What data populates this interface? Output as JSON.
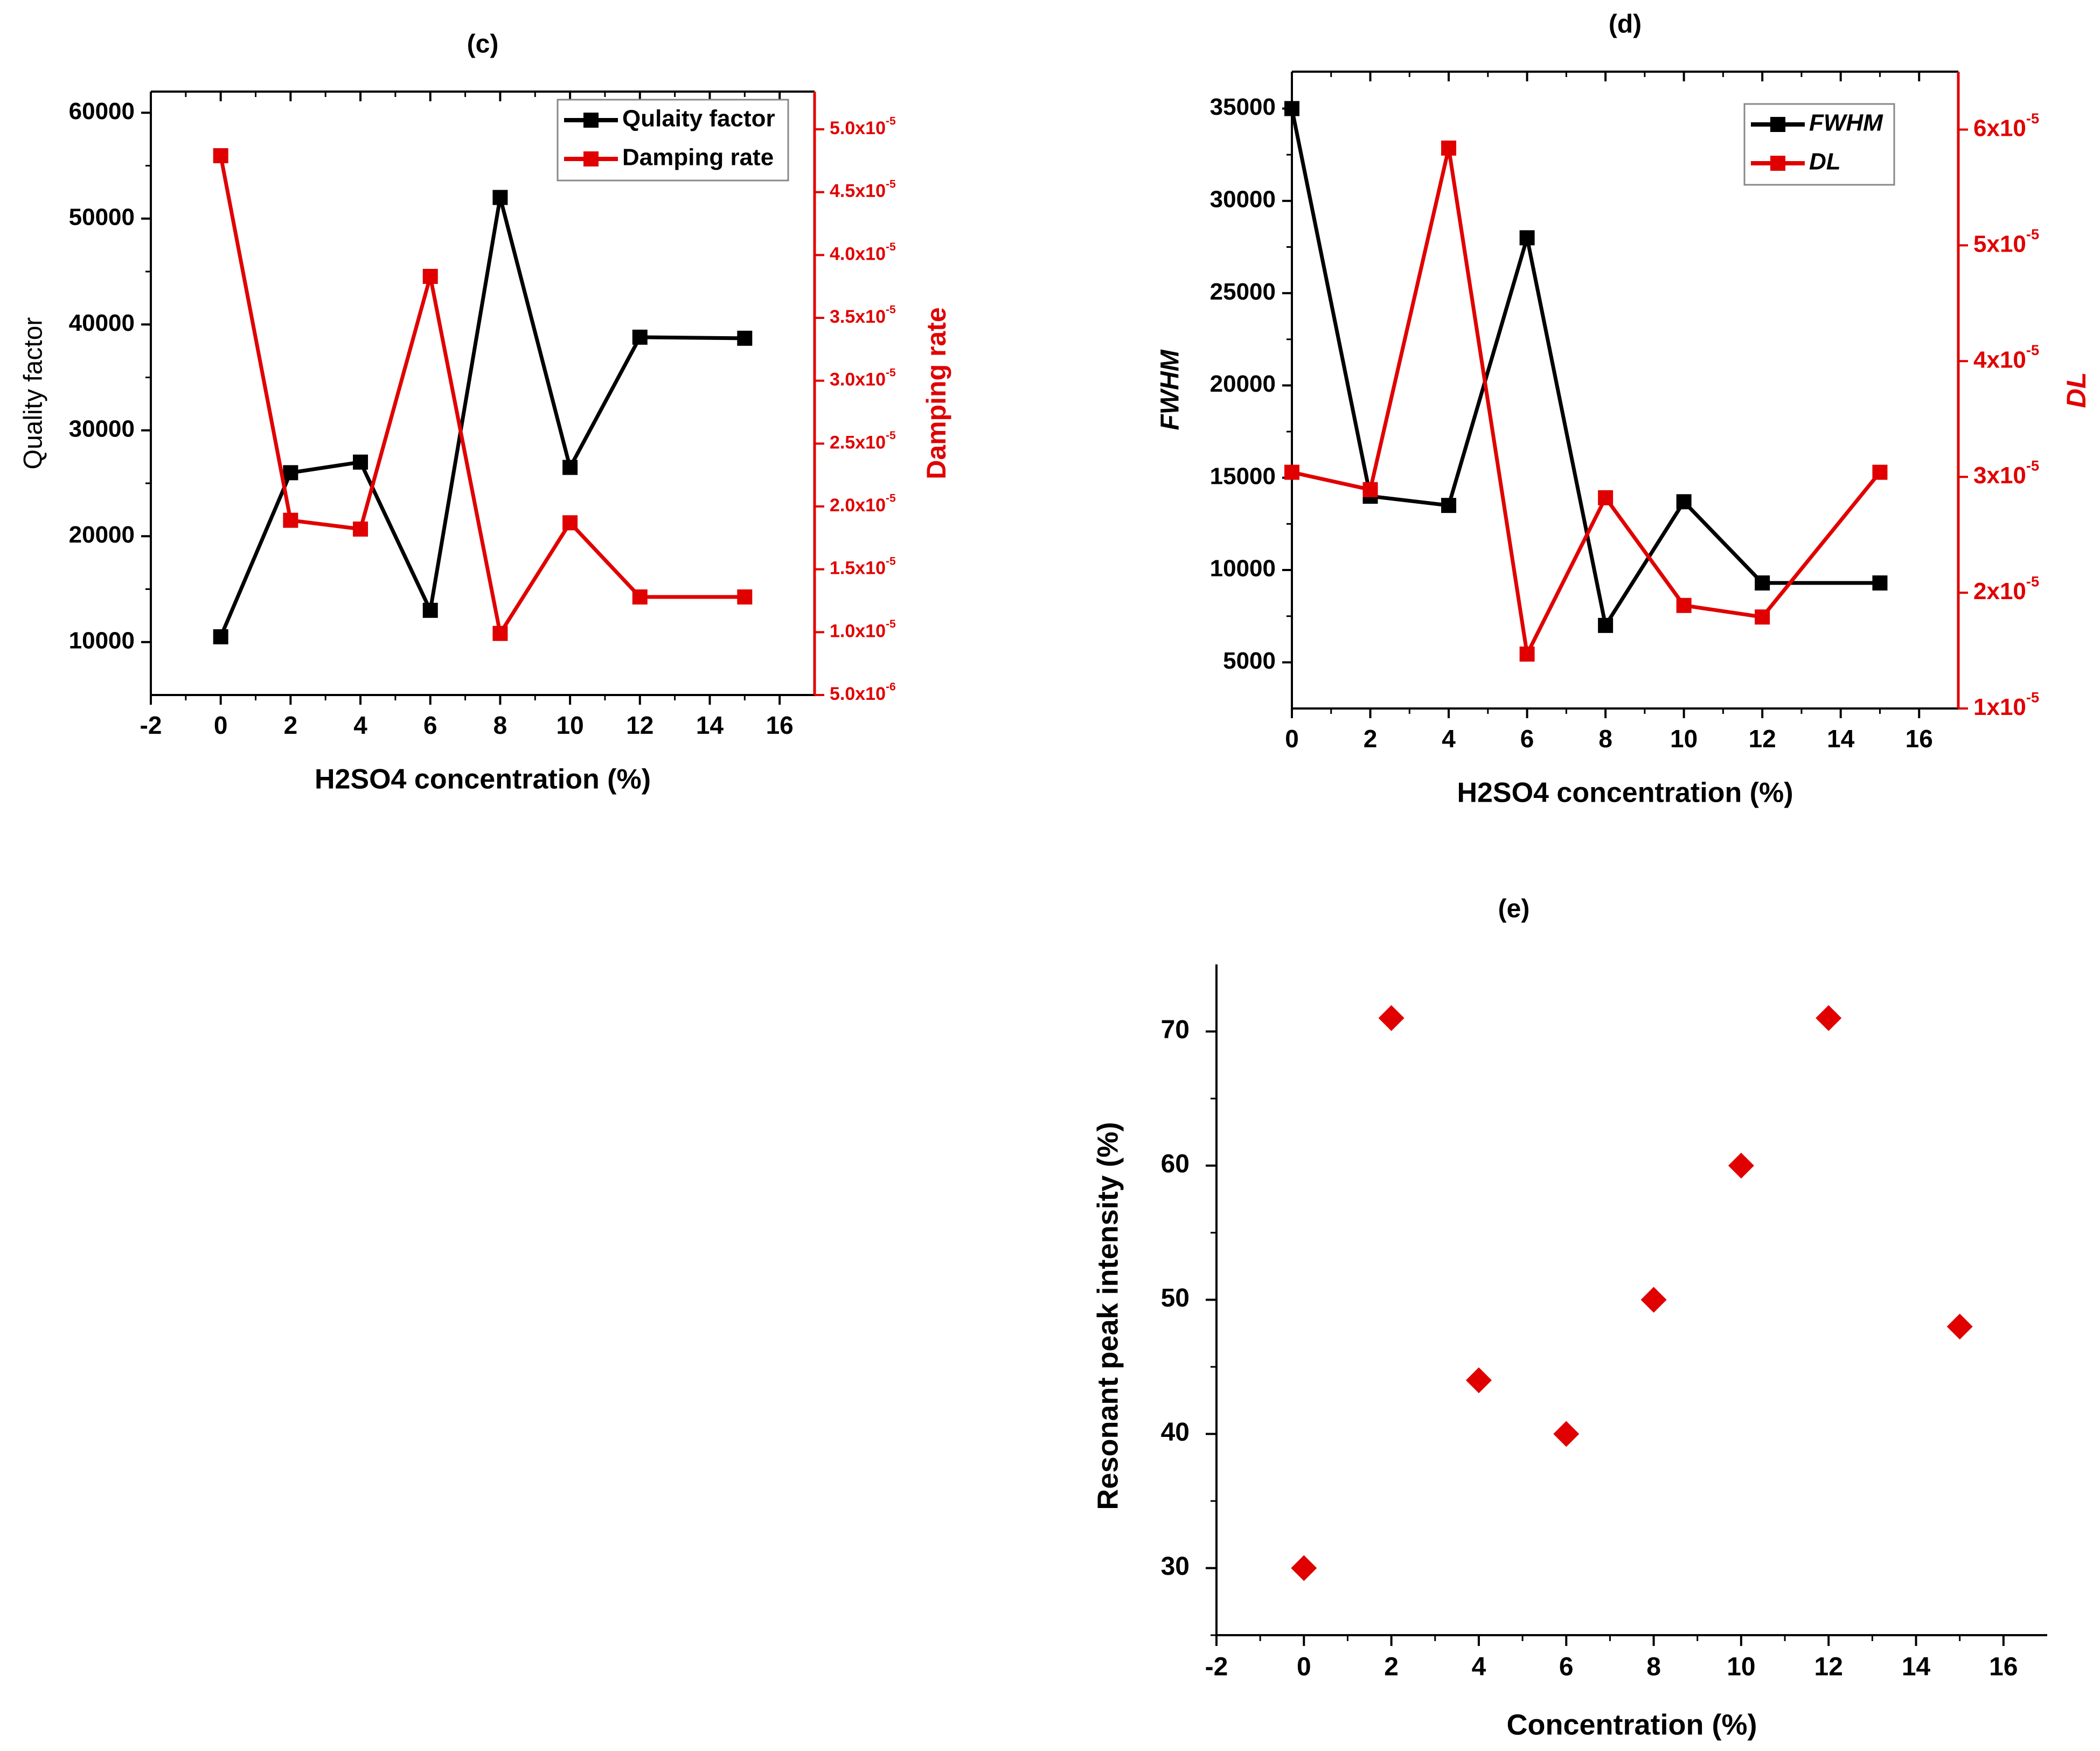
{
  "chart_data": [
    {
      "id": "c",
      "type": "line",
      "title": "(c)",
      "xlabel": "H2SO4 concentration (%)",
      "ylabel": "Quality factor",
      "y2label": "Damping rate",
      "xlim": [
        -2,
        17
      ],
      "ylim": [
        5000,
        62000
      ],
      "y2lim": [
        5e-06,
        5.3e-05
      ],
      "x_ticks": [
        "-2",
        "0",
        "2",
        "4",
        "6",
        "8",
        "10",
        "12",
        "14",
        "16"
      ],
      "y_ticks": [
        "10000",
        "20000",
        "30000",
        "40000",
        "50000",
        "60000"
      ],
      "y2_ticks": [
        {
          "mant": "5.0x10",
          "exp": "-6"
        },
        {
          "mant": "1.0x10",
          "exp": "-5"
        },
        {
          "mant": "1.5x10",
          "exp": "-5"
        },
        {
          "mant": "2.0x10",
          "exp": "-5"
        },
        {
          "mant": "2.5x10",
          "exp": "-5"
        },
        {
          "mant": "3.0x10",
          "exp": "-5"
        },
        {
          "mant": "3.5x10",
          "exp": "-5"
        },
        {
          "mant": "4.0x10",
          "exp": "-5"
        },
        {
          "mant": "4.5x10",
          "exp": "-5"
        },
        {
          "mant": "5.0x10",
          "exp": "-5"
        }
      ],
      "legend_position": "top-right",
      "series": [
        {
          "name": "Qulaity factor",
          "axis": "left",
          "color": "#000000",
          "x": [
            0,
            2,
            4,
            6,
            8,
            10,
            12,
            15
          ],
          "y": [
            10500,
            26000,
            27000,
            13000,
            52000,
            26500,
            38800,
            38700
          ]
        },
        {
          "name": "Damping rate",
          "axis": "right",
          "color": "#e00000",
          "x": [
            0,
            2,
            4,
            6,
            8,
            10,
            12,
            15
          ],
          "y": [
            4.79e-05,
            1.89e-05,
            1.82e-05,
            3.83e-05,
            9.9e-06,
            1.87e-05,
            1.28e-05,
            1.28e-05
          ]
        }
      ]
    },
    {
      "id": "d",
      "type": "line",
      "title": "(d)",
      "xlabel": "H2SO4 concentration (%)",
      "ylabel": "FWHM",
      "y2label": "DL",
      "xlim": [
        0,
        17
      ],
      "ylim": [
        2500,
        37000
      ],
      "y2lim": [
        1e-05,
        6.5e-05
      ],
      "x_ticks": [
        "0",
        "2",
        "4",
        "6",
        "8",
        "10",
        "12",
        "14",
        "16"
      ],
      "y_ticks": [
        "5000",
        "10000",
        "15000",
        "20000",
        "25000",
        "30000",
        "35000"
      ],
      "y2_ticks": [
        {
          "mant": "1x10",
          "exp": "-5"
        },
        {
          "mant": "2x10",
          "exp": "-5"
        },
        {
          "mant": "3x10",
          "exp": "-5"
        },
        {
          "mant": "4x10",
          "exp": "-5"
        },
        {
          "mant": "5x10",
          "exp": "-5"
        },
        {
          "mant": "6x10",
          "exp": "-5"
        }
      ],
      "legend_position": "top-right",
      "series": [
        {
          "name": "FWHM",
          "axis": "left",
          "color": "#000000",
          "x": [
            0,
            2,
            4,
            6,
            8,
            10,
            12,
            15
          ],
          "y": [
            35000,
            14000,
            13500,
            28000,
            7000,
            13700,
            9300,
            9300
          ]
        },
        {
          "name": "DL",
          "axis": "right",
          "color": "#e00000",
          "x": [
            0,
            2,
            4,
            6,
            8,
            10,
            12,
            15
          ],
          "y": [
            3.04e-05,
            2.89e-05,
            5.84e-05,
            1.47e-05,
            2.82e-05,
            1.89e-05,
            1.79e-05,
            3.04e-05
          ]
        }
      ]
    },
    {
      "id": "e",
      "type": "scatter",
      "title": "(e)",
      "xlabel": "Concentration (%)",
      "ylabel": "Resonant peak intensity (%)",
      "xlim": [
        -2,
        17
      ],
      "ylim": [
        25,
        75
      ],
      "x_ticks": [
        "-2",
        "0",
        "2",
        "4",
        "6",
        "8",
        "10",
        "12",
        "14",
        "16"
      ],
      "y_ticks": [
        "30",
        "40",
        "50",
        "60",
        "70"
      ],
      "series": [
        {
          "name": "Resonant peak intensity",
          "color": "#e00000",
          "x": [
            0,
            2,
            4,
            6,
            8,
            10,
            12,
            15
          ],
          "y": [
            30,
            71,
            44,
            40,
            50,
            60,
            71,
            48
          ]
        }
      ]
    }
  ]
}
